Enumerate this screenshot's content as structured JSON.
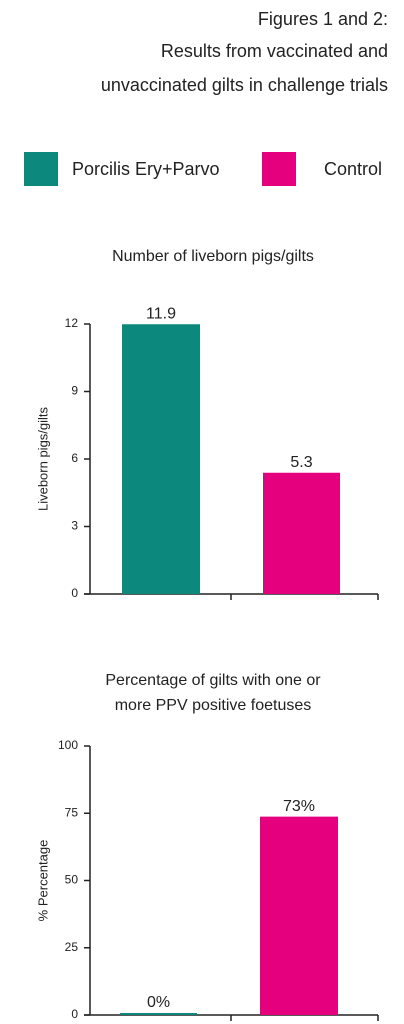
{
  "header": {
    "lines": [
      "Figures 1 and 2:",
      "Results from vaccinated and",
      "unvaccinated gilts in challenge trials"
    ]
  },
  "legend": {
    "items": [
      {
        "name": "Porcilis Ery+Parvo",
        "color": "#0d887c"
      },
      {
        "name": "Control",
        "color": "#e5007e"
      }
    ]
  },
  "chart_data": [
    {
      "type": "bar",
      "title": [
        "Number of liveborn pigs/gilts"
      ],
      "y_label": "Liveborn pigs/gilts",
      "categories": [
        null,
        null
      ],
      "values": [
        11.9,
        5.3
      ],
      "colors": [
        "#0d887c",
        "#e5007e"
      ],
      "ylim": [
        0,
        12
      ],
      "yticks": [
        0,
        3,
        6,
        9,
        12
      ]
    },
    {
      "type": "bar",
      "title": [
        "Percentage of gilts with one or",
        "more PPV positive foetuses"
      ],
      "y_label": "% Percentage",
      "categories": [
        null,
        null
      ],
      "values": [
        0,
        73
      ],
      "value_labels": [
        "0%",
        "73%"
      ],
      "colors": [
        "#0d887c",
        "#e5007e"
      ],
      "ylim": [
        0,
        100
      ],
      "yticks": [
        0,
        25,
        50,
        75,
        100
      ]
    }
  ]
}
